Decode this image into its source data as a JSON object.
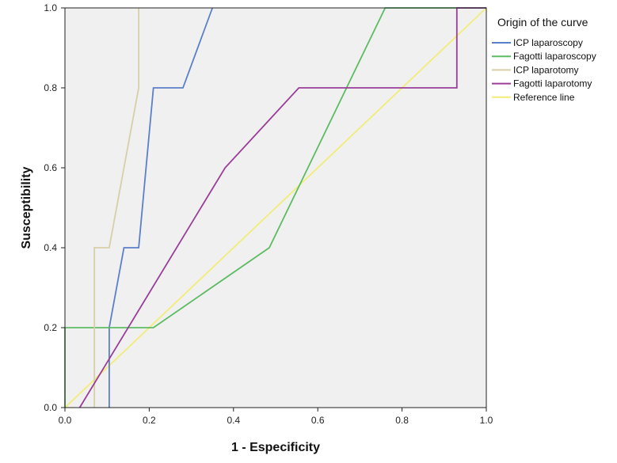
{
  "chart_data": {
    "type": "line",
    "title": "",
    "xlabel": "1 - Especificity",
    "ylabel": "Susceptibility",
    "xlim": [
      0,
      1
    ],
    "ylim": [
      0,
      1
    ],
    "x_ticks": [
      "0.0",
      "0.2",
      "0.4",
      "0.6",
      "0.8",
      "1.0"
    ],
    "y_ticks": [
      "0.0",
      "0.2",
      "0.4",
      "0.6",
      "0.8",
      "1.0"
    ],
    "grid": false,
    "background": "#f0f0f0",
    "legend": {
      "title": "Origin of the curve",
      "placement": "right",
      "entries": [
        "ICP laparoscopy",
        "Fagotti laparoscopy",
        "ICP laparotomy",
        "Fagotti laparotomy",
        "Reference line"
      ]
    },
    "series": [
      {
        "name": "ICP laparoscopy",
        "color": "#5b7fc8",
        "points": [
          [
            0.105,
            0.0
          ],
          [
            0.105,
            0.2
          ],
          [
            0.14,
            0.4
          ],
          [
            0.175,
            0.4
          ],
          [
            0.21,
            0.8
          ],
          [
            0.28,
            0.8
          ],
          [
            0.35,
            1.0
          ]
        ]
      },
      {
        "name": "Fagotti laparoscopy",
        "color": "#5dbb63",
        "points": [
          [
            0.0,
            0.0
          ],
          [
            0.0,
            0.2
          ],
          [
            0.21,
            0.2
          ],
          [
            0.485,
            0.4
          ],
          [
            0.76,
            1.0
          ],
          [
            1.0,
            1.0
          ]
        ]
      },
      {
        "name": "ICP laparotomy",
        "color": "#d6cfa8",
        "points": [
          [
            0.07,
            0.0
          ],
          [
            0.07,
            0.4
          ],
          [
            0.105,
            0.4
          ],
          [
            0.175,
            0.8
          ],
          [
            0.175,
            1.0
          ]
        ]
      },
      {
        "name": "Fagotti laparotomy",
        "color": "#9a3d99",
        "points": [
          [
            0.035,
            0.0
          ],
          [
            0.38,
            0.6
          ],
          [
            0.555,
            0.8
          ],
          [
            0.93,
            0.8
          ],
          [
            0.93,
            1.0
          ],
          [
            1.0,
            1.0
          ]
        ]
      },
      {
        "name": "Reference line",
        "color": "#f2ec78",
        "points": [
          [
            0.0,
            0.0
          ],
          [
            1.0,
            1.0
          ]
        ]
      }
    ]
  }
}
